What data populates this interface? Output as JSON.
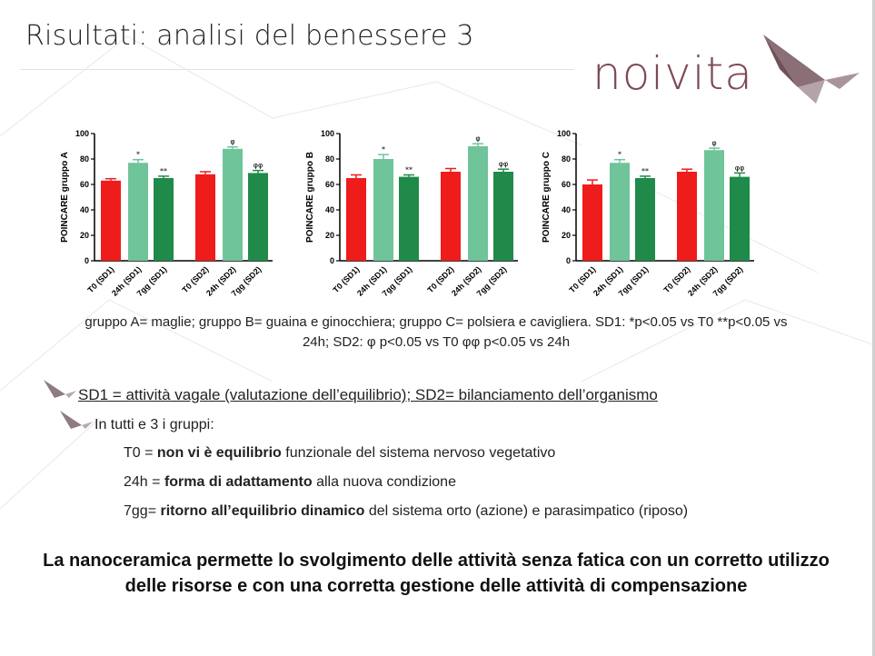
{
  "slide": {
    "title": "Risultati: analisi del benessere 3",
    "logo_text": "noivita",
    "caption_line1": "gruppo A= maglie; gruppo B= guaina e ginocchiera; gruppo C= polsiera e cavigliera. SD1: *p<0.05 vs T0 **p<0.05 vs",
    "caption_line2": "24h; SD2: φ p<0.05 vs T0 φφ p<0.05 vs 24h",
    "sd_definition": "SD1 = attività vagale (valutazione dell’equilibrio); SD2= bilanciamento dell’organismo",
    "all_groups": "In tutti e 3 i gruppi:",
    "t0_prefix": "T0 = ",
    "t0_bold": "non vi è equilibrio",
    "t0_rest": " funzionale del sistema nervoso vegetativo",
    "h24_prefix": "24h = ",
    "h24_bold": "forma di adattamento",
    "h24_rest": " alla nuova condizione",
    "gg7_prefix": "7gg= ",
    "gg7_bold": "ritorno all’equilibrio dinamico",
    "gg7_rest": " del sistema orto (azione) e parasimpatico (riposo)",
    "conclusion": "La nanoceramica permette lo svolgimento delle attività senza fatica con un corretto utilizzo delle risorse e con una corretta gestione delle attività di compensazione"
  },
  "colors": {
    "red": "#ef1c1c",
    "light_green": "#6fc49a",
    "dark_green": "#1f8a4a",
    "logo": "#7d4a54"
  },
  "chart_data": [
    {
      "type": "bar",
      "ylabel": "POINCARE gruppo A",
      "ylim": [
        0,
        100
      ],
      "yticks": [
        0,
        20,
        40,
        60,
        80,
        100
      ],
      "categories": [
        "T0 (SD1)",
        "24h (SD1)",
        "7gg (SD1)",
        "T0 (SD2)",
        "24h (SD2)",
        "7gg (SD2)"
      ],
      "values": [
        63,
        77,
        65,
        68,
        88,
        69
      ],
      "errors": [
        1.5,
        2.5,
        1.5,
        2,
        1.5,
        2
      ],
      "annotations": [
        "",
        "*",
        "**",
        "",
        "φ",
        "φφ"
      ],
      "colors": [
        "red",
        "light_green",
        "dark_green",
        "red",
        "light_green",
        "dark_green"
      ]
    },
    {
      "type": "bar",
      "ylabel": "POINCARE gruppo B",
      "ylim": [
        0,
        100
      ],
      "yticks": [
        0,
        20,
        40,
        60,
        80,
        100
      ],
      "categories": [
        "T0 (SD1)",
        "24h (SD1)",
        "7gg (SD1)",
        "T0 (SD2)",
        "24h (SD2)",
        "7gg (SD2)"
      ],
      "values": [
        65,
        80,
        66,
        70,
        90,
        70
      ],
      "errors": [
        2.5,
        3.5,
        1.5,
        2.5,
        2.0,
        2.0
      ],
      "annotations": [
        "",
        "*",
        "**",
        "",
        "φ",
        "φφ"
      ],
      "colors": [
        "red",
        "light_green",
        "dark_green",
        "red",
        "light_green",
        "dark_green"
      ]
    },
    {
      "type": "bar",
      "ylabel": "POINCARE gruppo C",
      "ylim": [
        0,
        100
      ],
      "yticks": [
        0,
        20,
        40,
        60,
        80,
        100
      ],
      "categories": [
        "T0 (SD1)",
        "24h (SD1)",
        "7gg (SD1)",
        "T0 (SD2)",
        "24h (SD2)",
        "7gg (SD2)"
      ],
      "values": [
        60,
        77,
        65,
        70,
        87,
        66
      ],
      "errors": [
        3.5,
        2.5,
        1.5,
        2,
        1.5,
        3
      ],
      "annotations": [
        "",
        "*",
        "**",
        "",
        "φ",
        "φφ"
      ],
      "colors": [
        "red",
        "light_green",
        "dark_green",
        "red",
        "light_green",
        "dark_green"
      ]
    }
  ]
}
